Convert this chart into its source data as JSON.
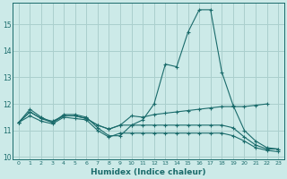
{
  "title": "",
  "xlabel": "Humidex (Indice chaleur)",
  "bg_color": "#cceae8",
  "grid_color": "#aacfcd",
  "line_color": "#1a6b6b",
  "xlim": [
    -0.5,
    23.5
  ],
  "ylim": [
    9.9,
    15.8
  ],
  "xticks": [
    0,
    1,
    2,
    3,
    4,
    5,
    6,
    7,
    8,
    9,
    10,
    11,
    12,
    13,
    14,
    15,
    16,
    17,
    18,
    19,
    20,
    21,
    22,
    23
  ],
  "yticks": [
    10,
    11,
    12,
    13,
    14,
    15
  ],
  "series": [
    [
      11.3,
      11.8,
      11.5,
      11.3,
      11.6,
      11.6,
      11.5,
      11.1,
      10.8,
      10.8,
      11.2,
      11.4,
      12.0,
      13.5,
      13.4,
      14.7,
      15.55,
      15.55,
      13.2,
      11.95,
      11.0,
      10.6,
      10.35,
      10.3
    ],
    [
      11.3,
      11.7,
      11.45,
      11.3,
      11.55,
      11.55,
      11.45,
      11.2,
      11.05,
      11.2,
      11.55,
      11.5,
      11.6,
      11.65,
      11.7,
      11.75,
      11.8,
      11.85,
      11.9,
      11.9,
      11.9,
      11.95,
      12.0,
      null
    ],
    [
      11.3,
      11.7,
      11.45,
      11.35,
      11.55,
      11.55,
      11.45,
      11.2,
      11.05,
      11.2,
      11.2,
      11.2,
      11.2,
      11.2,
      11.2,
      11.2,
      11.2,
      11.2,
      11.2,
      11.1,
      10.75,
      10.45,
      10.3,
      10.3
    ],
    [
      11.3,
      11.55,
      11.35,
      11.25,
      11.5,
      11.45,
      11.4,
      11.0,
      10.75,
      10.9,
      10.9,
      10.9,
      10.9,
      10.9,
      10.9,
      10.9,
      10.9,
      10.9,
      10.9,
      10.8,
      10.6,
      10.35,
      10.25,
      10.2
    ]
  ]
}
